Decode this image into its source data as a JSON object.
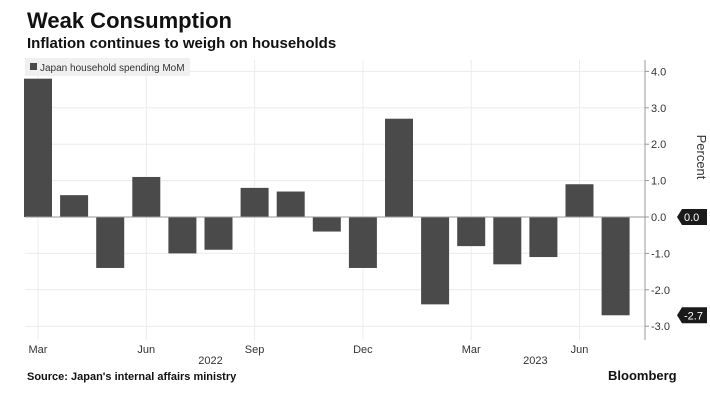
{
  "title": "Weak Consumption",
  "subtitle": "Inflation continues to weigh on households",
  "source": "Source: Japan's internal affairs ministry",
  "brand": "Bloomberg",
  "chart_data": {
    "type": "bar",
    "legend": "Japan household spending MoM",
    "legend_position": "top-left",
    "ylabel": "Percent",
    "ylim": [
      -3.0,
      4.3
    ],
    "yticks": [
      "4.0",
      "3.0",
      "2.0",
      "1.0",
      "0.0",
      "-1.0",
      "-2.0",
      "-3.0"
    ],
    "ytick_values": [
      4,
      3,
      2,
      1,
      0,
      -1,
      -2,
      -3
    ],
    "categories": [
      "Mar 2022",
      "Apr 2022",
      "May 2022",
      "Jun 2022",
      "Jul 2022",
      "Aug 2022",
      "Sep 2022",
      "Oct 2022",
      "Nov 2022",
      "Dec 2022",
      "Jan 2023",
      "Feb 2023",
      "Mar 2023",
      "Apr 2023",
      "May 2023",
      "Jun 2023",
      "Jul 2023"
    ],
    "values": [
      3.8,
      0.6,
      -1.4,
      1.1,
      -1.0,
      -0.9,
      0.8,
      0.7,
      -0.4,
      -1.4,
      2.7,
      -2.4,
      -0.8,
      -1.3,
      -1.1,
      0.9,
      -2.7
    ],
    "xtick_labels": [
      {
        "index": 0,
        "label": "Mar"
      },
      {
        "index": 3,
        "label": "Jun"
      },
      {
        "index": 6,
        "label": "Sep"
      },
      {
        "index": 9,
        "label": "Dec"
      },
      {
        "index": 12,
        "label": "Mar"
      },
      {
        "index": 15,
        "label": "Jun"
      }
    ],
    "year_labels": [
      {
        "index": 5,
        "label": "2022"
      },
      {
        "index": 14,
        "label": "2023"
      }
    ],
    "callouts": [
      "0.0",
      "-2.7"
    ],
    "bar_color": "#4a4a4a",
    "grid": true
  }
}
